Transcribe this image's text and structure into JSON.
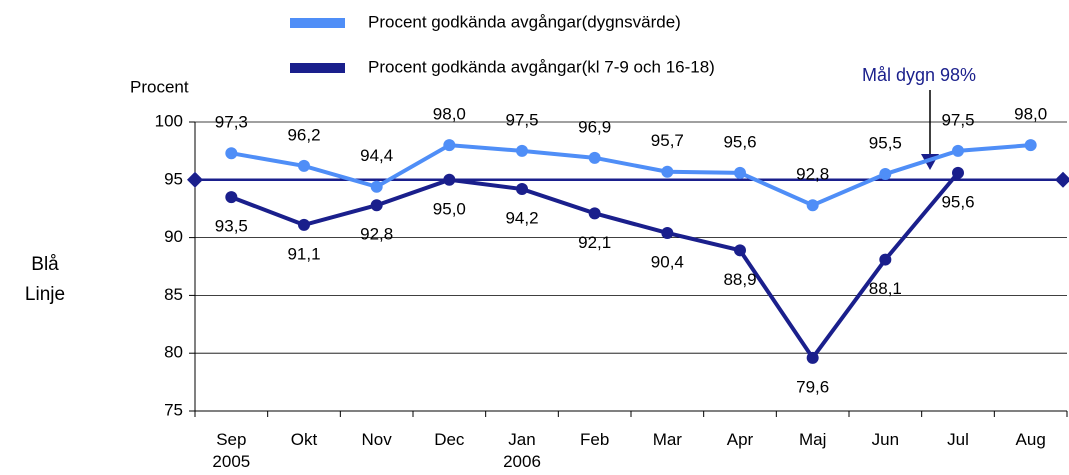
{
  "chart_data": {
    "type": "line",
    "ylabel": "Procent",
    "side_label": "Blå Linje",
    "annotation": "Mål dygn 98%",
    "categories": [
      "Sep 2005",
      "Okt",
      "Nov",
      "Dec",
      "Jan 2006",
      "Feb",
      "Mar",
      "Apr",
      "Maj",
      "Jun",
      "Jul",
      "Aug"
    ],
    "series": [
      {
        "name": "Procent godkända avgångar(dygnsvärde)",
        "color": "#4f8ef7",
        "values": [
          97.3,
          96.2,
          94.4,
          98.0,
          97.5,
          96.9,
          95.7,
          95.6,
          92.8,
          95.5,
          97.5,
          98.0
        ],
        "value_labels": [
          "97,3",
          "96,2",
          "94,4",
          "98,0",
          "97,5",
          "96,9",
          "95,7",
          "95,6",
          "92,8",
          "95,5",
          "97,5",
          "98,0"
        ]
      },
      {
        "name": "Procent godkända avgångar(kl 7-9 och 16-18)",
        "color": "#1a1f8c",
        "values": [
          93.5,
          91.1,
          92.8,
          95.0,
          94.2,
          92.1,
          90.4,
          88.9,
          79.6,
          88.1,
          95.6,
          null
        ],
        "value_labels": [
          "93,5",
          "91,1",
          "92,8",
          "95,0",
          "94,2",
          "92,1",
          "90,4",
          "88,9",
          "79,6",
          "88,1",
          "95,6",
          null
        ]
      }
    ],
    "target": 95,
    "target_color": "#1a1f8c",
    "ylim": [
      75,
      100
    ],
    "yticks": [
      75,
      80,
      85,
      90,
      95,
      100
    ],
    "grid": true
  }
}
